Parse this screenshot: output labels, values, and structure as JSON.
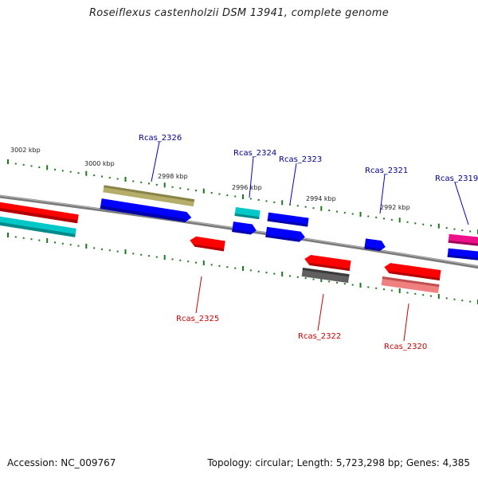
{
  "title": "Roseiflexus castenholzii DSM 13941, complete genome",
  "footer": {
    "accession": "Accession: NC_009767",
    "topology": "Topology: circular; Length: 5,723,298 bp; Genes: 4,385"
  },
  "scale_labels": [
    "3002 kbp",
    "3000 kbp",
    "2998 kbp",
    "2996 kbp",
    "2994 kbp",
    "2992 kbp"
  ],
  "gene_labels": {
    "top": [
      "Rcas_2326",
      "Rcas_2324",
      "Rcas_2323",
      "Rcas_2321",
      "Rcas_2319"
    ],
    "bottom": [
      "Rcas_2325",
      "Rcas_2322",
      "Rcas_2320"
    ]
  },
  "colors": {
    "backbone": "#808080",
    "tick": "#1a7a1a",
    "label_top": "#00008b",
    "label_bottom": "#cc0000",
    "red": "#ff0000",
    "blue": "#0000ff",
    "cyan": "#00bcbc",
    "olive": "#b5ae6a",
    "gray": "#606060",
    "pink": "#f08080",
    "magenta": "#ee1089"
  }
}
